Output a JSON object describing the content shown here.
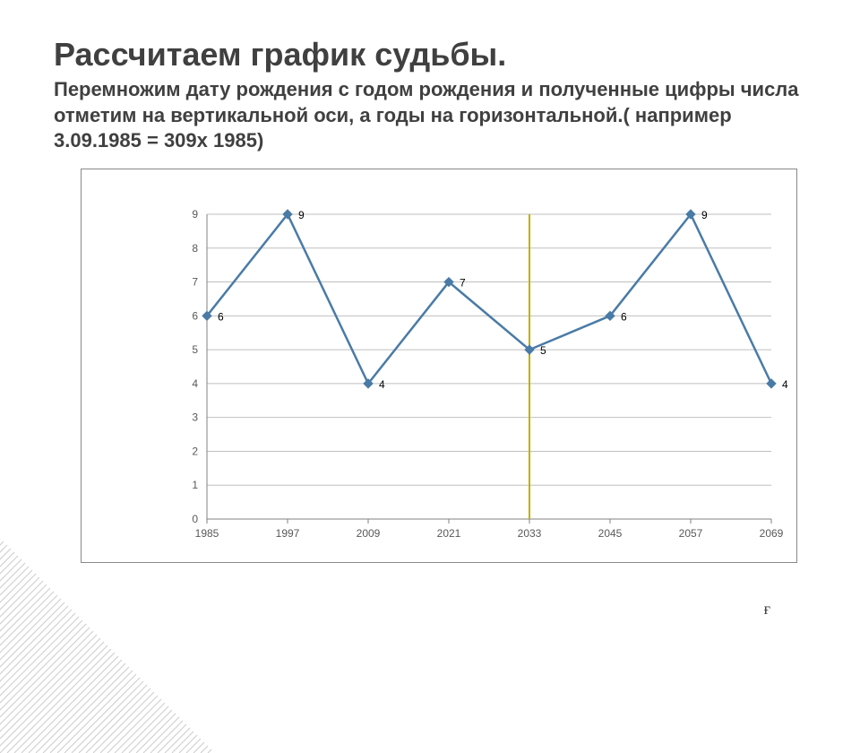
{
  "title": "Рассчитаем график судьбы.",
  "subtitle": "Перемножим дату рождения с годом рождения и полученные цифры числа отметим на вертикальной оси, а годы на горизонтальной.( например 3.09.1985  = 309х 1985)",
  "chart": {
    "type": "line",
    "categories": [
      "1985",
      "1997",
      "2009",
      "2021",
      "2033",
      "2045",
      "2057",
      "2069"
    ],
    "values": [
      6,
      9,
      4,
      7,
      5,
      6,
      9,
      4
    ],
    "data_labels": [
      "6",
      "9",
      "4",
      "7",
      "5",
      "6",
      "9",
      "4"
    ],
    "y_ticks": [
      "0",
      "1",
      "2",
      "3",
      "4",
      "5",
      "6",
      "7",
      "8",
      "9"
    ],
    "ylim": [
      0,
      9
    ],
    "line_color": "#4a7ba6",
    "line_width": 2.5,
    "marker_color": "#4a7ba6",
    "marker_size": 5,
    "grid_color": "#bfbfbf",
    "axis_color": "#808080",
    "tick_label_color": "#595959",
    "data_label_color": "#000000",
    "vertical_marker_color": "#c0b000",
    "vertical_marker_index": 4,
    "background_color": "#ffffff",
    "label_fontsize": 12
  },
  "corner_text": "ғ"
}
